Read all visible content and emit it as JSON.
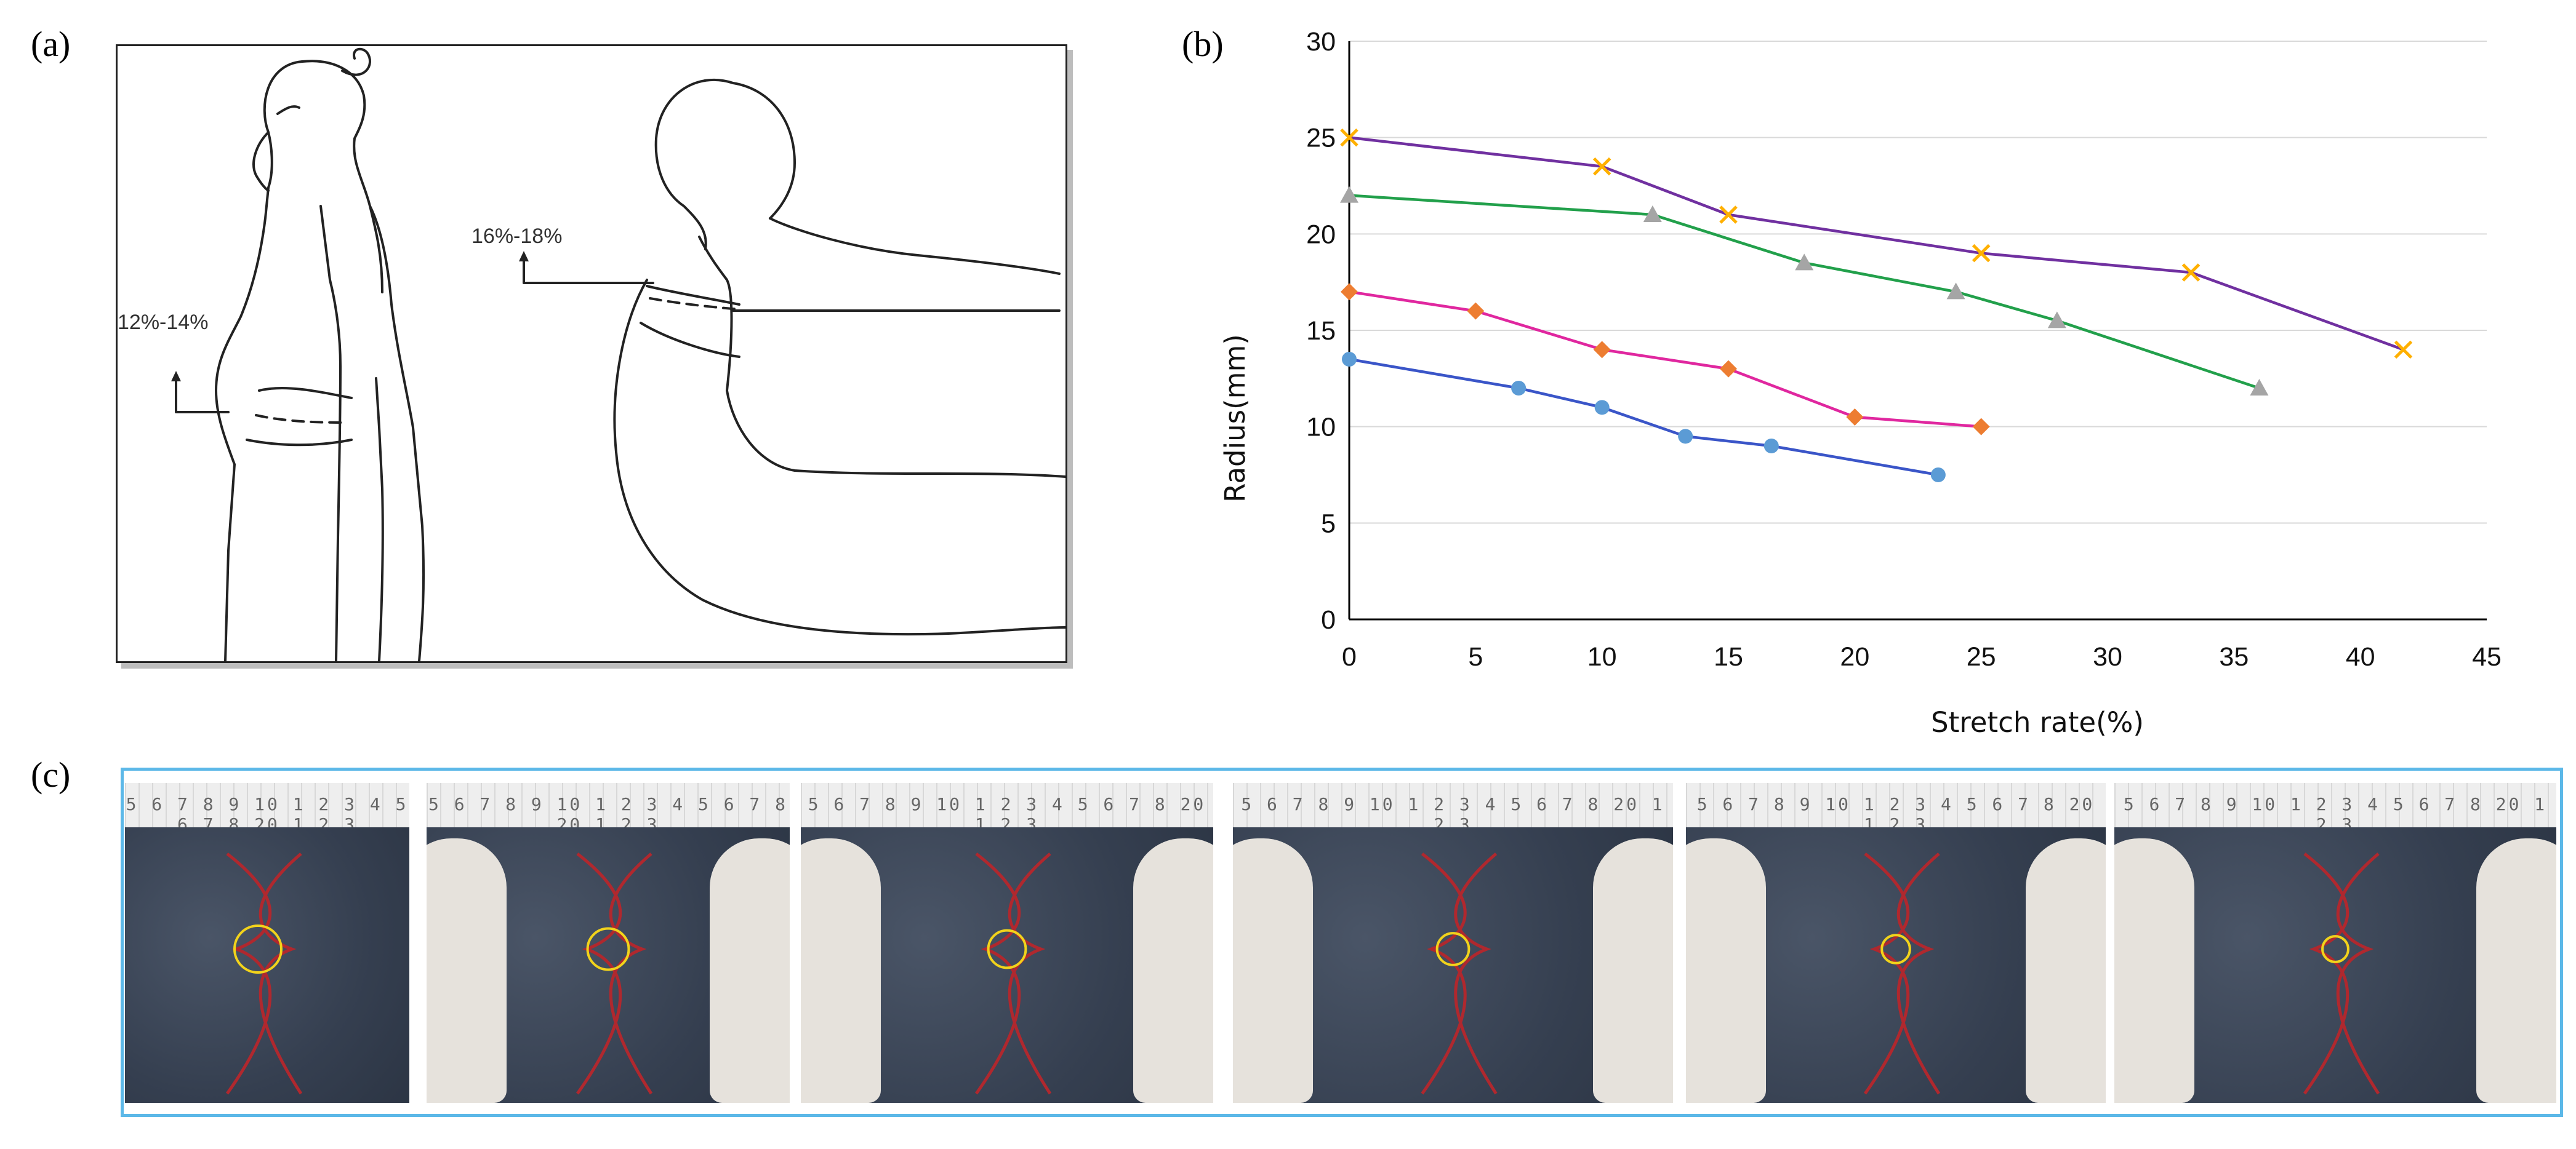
{
  "panel_labels": {
    "a": "(a)",
    "b": "(b)",
    "c": "(c)"
  },
  "sketch": {
    "left_figure_range": "12%-14%",
    "right_figure_range": "16%-18%"
  },
  "chart_data": {
    "type": "line",
    "title": "",
    "xlabel": "Stretch rate(%)",
    "ylabel": "Radius(mm)",
    "xlim": [
      0,
      45
    ],
    "ylim": [
      0,
      30
    ],
    "xticks": [
      0,
      5,
      10,
      15,
      20,
      25,
      30,
      35,
      40,
      45
    ],
    "yticks": [
      0,
      5,
      10,
      15,
      20,
      25,
      30
    ],
    "grid": "horizontal",
    "legend": "none",
    "series": [
      {
        "color": "#3a55c8",
        "marker_color": "#5b9bd5",
        "marker": "circle",
        "x": [
          0,
          6.7,
          10,
          13.3,
          16.7,
          23.3
        ],
        "y": [
          13.5,
          12,
          11,
          9.5,
          9,
          7.5
        ]
      },
      {
        "color": "#e0279f",
        "marker_color": "#ed7d31",
        "marker": "diamond",
        "x": [
          0,
          5,
          10,
          15,
          20,
          25
        ],
        "y": [
          17,
          16,
          14,
          13,
          10.5,
          10
        ]
      },
      {
        "color": "#22a04b",
        "marker_color": "#a5a5a5",
        "marker": "triangle",
        "x": [
          0,
          12,
          18,
          24,
          28,
          36
        ],
        "y": [
          22,
          21,
          18.5,
          17,
          15.5,
          12
        ]
      },
      {
        "color": "#7030a0",
        "marker_color": "#ffb000",
        "marker": "x",
        "x": [
          0,
          10,
          15,
          25,
          33.3,
          41.7
        ],
        "y": [
          25,
          23.5,
          21,
          19,
          18,
          14
        ]
      }
    ]
  },
  "photos": {
    "ruler_text": "5 6 7 8 9 10 1 2 3 4 5 6 7 8 20 1 2 3",
    "circle_radius_fraction": [
      1.0,
      0.88,
      0.8,
      0.68,
      0.6,
      0.55
    ],
    "circle_color": "#f2d31b",
    "curve_color": "#b0282e",
    "has_gloves": [
      false,
      true,
      true,
      true,
      true,
      true
    ]
  }
}
